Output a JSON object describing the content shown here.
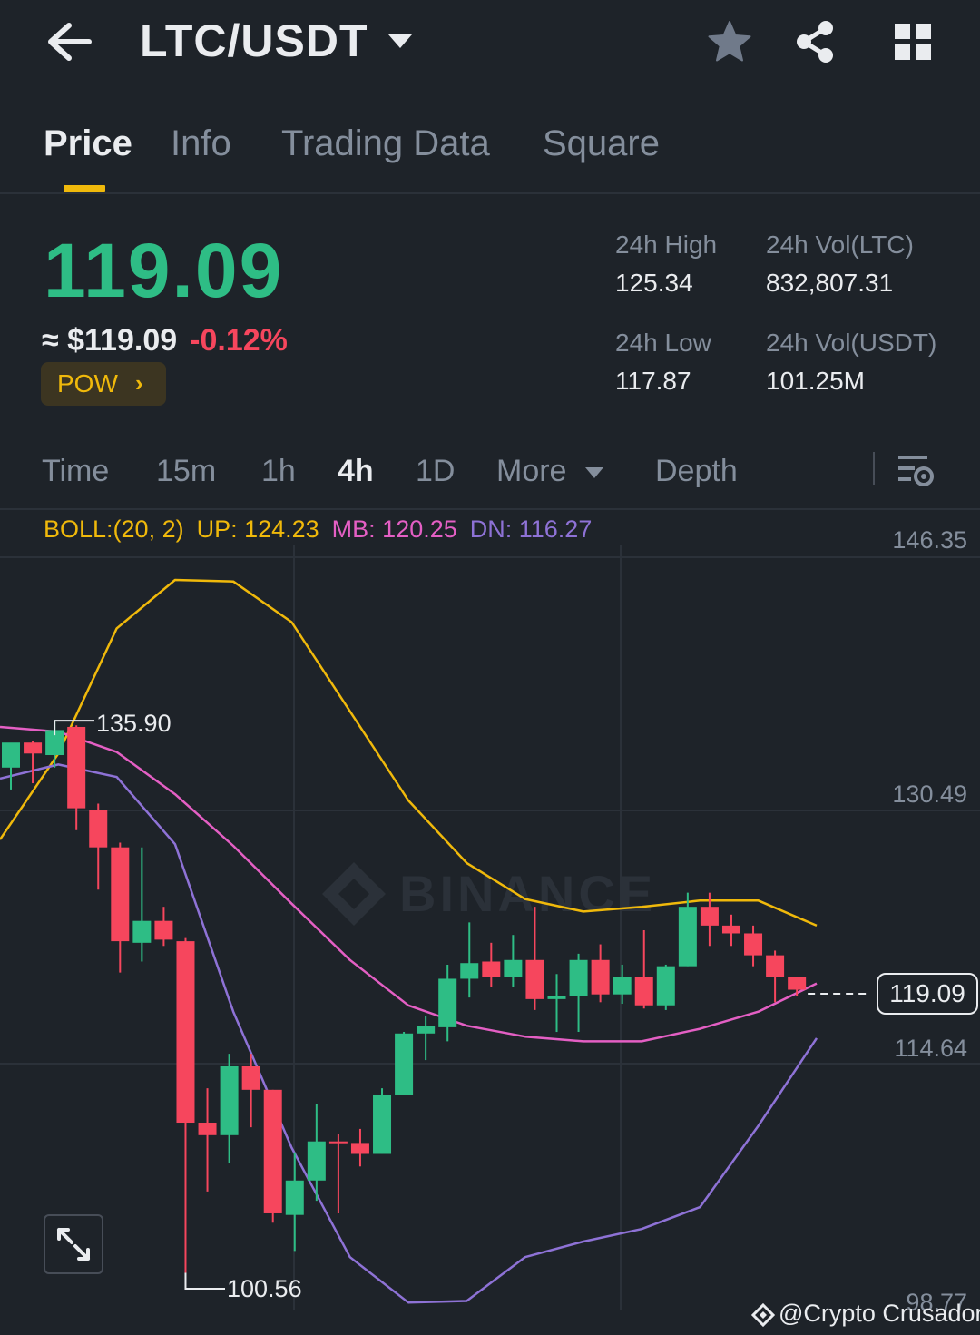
{
  "header": {
    "pair": "LTC/USDT",
    "icons": [
      "back-arrow-icon",
      "caret-down-icon",
      "star-icon",
      "share-icon",
      "grid-icon"
    ]
  },
  "tabs": [
    {
      "label": "Price",
      "active": true
    },
    {
      "label": "Info",
      "active": false
    },
    {
      "label": "Trading Data",
      "active": false
    },
    {
      "label": "Square",
      "active": false
    }
  ],
  "ticker": {
    "last_price": "119.09",
    "fiat_price": "≈ $119.09",
    "change": "-0.12%",
    "tag": "POW",
    "tag_chevron": "›",
    "stats": {
      "high_label": "24h High",
      "high_value": "125.34",
      "vol_ltc_label": "24h Vol(LTC)",
      "vol_ltc_value": "832,807.31",
      "low_label": "24h Low",
      "low_value": "117.87",
      "vol_usdt_label": "24h Vol(USDT)",
      "vol_usdt_value": "101.25M"
    }
  },
  "intervals": {
    "items": [
      "Time",
      "15m",
      "1h",
      "4h",
      "1D"
    ],
    "active": "4h",
    "more": "More",
    "depth": "Depth"
  },
  "indicator": {
    "name": "BOLL:(20, 2)",
    "up": "UP: 124.23",
    "mb": "MB: 120.25",
    "dn": "DN: 116.27"
  },
  "chart_data": {
    "type": "candlestick",
    "interval": "4h",
    "y_axis_labels": [
      "146.35",
      "130.49",
      "114.64",
      "98.77"
    ],
    "current_price_tag": "119.09",
    "high_marker": "135.90",
    "low_marker": "100.56",
    "watermark": "BINANCE",
    "colors": {
      "up": "#2ebd85",
      "down": "#f6465d",
      "boll_up": "#f0b90b",
      "boll_mb": "#e45fc4",
      "boll_dn": "#8e72d6"
    },
    "candles": [
      {
        "o": 132.9,
        "h": 134.4,
        "l": 131.5,
        "c": 134.5
      },
      {
        "o": 134.5,
        "h": 134.6,
        "l": 131.9,
        "c": 133.8
      },
      {
        "o": 133.7,
        "h": 135.9,
        "l": 132.9,
        "c": 135.3
      },
      {
        "o": 135.5,
        "h": 135.6,
        "l": 128.9,
        "c": 130.3
      },
      {
        "o": 130.2,
        "h": 130.6,
        "l": 125.1,
        "c": 127.8
      },
      {
        "o": 127.8,
        "h": 128.1,
        "l": 119.8,
        "c": 121.8
      },
      {
        "o": 121.7,
        "h": 127.8,
        "l": 120.5,
        "c": 123.1
      },
      {
        "o": 123.1,
        "h": 124.0,
        "l": 121.5,
        "c": 121.9
      },
      {
        "o": 121.8,
        "h": 122.0,
        "l": 100.6,
        "c": 110.2
      },
      {
        "o": 110.2,
        "h": 112.4,
        "l": 105.8,
        "c": 109.4
      },
      {
        "o": 109.4,
        "h": 114.6,
        "l": 107.6,
        "c": 113.8
      },
      {
        "o": 113.8,
        "h": 114.6,
        "l": 109.9,
        "c": 112.3
      },
      {
        "o": 112.3,
        "h": 112.3,
        "l": 103.8,
        "c": 104.4
      },
      {
        "o": 104.3,
        "h": 108.3,
        "l": 102.0,
        "c": 106.5
      },
      {
        "o": 106.5,
        "h": 111.4,
        "l": 105.2,
        "c": 109.0
      },
      {
        "o": 109.0,
        "h": 109.5,
        "l": 104.4,
        "c": 108.9
      },
      {
        "o": 108.9,
        "h": 109.8,
        "l": 107.4,
        "c": 108.2
      },
      {
        "o": 108.2,
        "h": 112.4,
        "l": 108.2,
        "c": 112.0
      },
      {
        "o": 112.0,
        "h": 116.0,
        "l": 112.0,
        "c": 115.9
      },
      {
        "o": 115.9,
        "h": 117.0,
        "l": 114.2,
        "c": 116.4
      },
      {
        "o": 116.3,
        "h": 120.3,
        "l": 115.4,
        "c": 119.4
      },
      {
        "o": 119.4,
        "h": 123.0,
        "l": 118.2,
        "c": 120.4
      },
      {
        "o": 120.5,
        "h": 121.7,
        "l": 118.9,
        "c": 119.5
      },
      {
        "o": 119.5,
        "h": 122.2,
        "l": 118.9,
        "c": 120.6
      },
      {
        "o": 120.6,
        "h": 124.0,
        "l": 117.4,
        "c": 118.1
      },
      {
        "o": 118.1,
        "h": 119.7,
        "l": 116.0,
        "c": 118.3
      },
      {
        "o": 118.3,
        "h": 121.0,
        "l": 116.0,
        "c": 120.6
      },
      {
        "o": 120.6,
        "h": 121.6,
        "l": 117.9,
        "c": 118.4
      },
      {
        "o": 118.4,
        "h": 120.3,
        "l": 117.8,
        "c": 119.5
      },
      {
        "o": 119.5,
        "h": 122.5,
        "l": 117.5,
        "c": 117.7
      },
      {
        "o": 117.7,
        "h": 120.3,
        "l": 117.4,
        "c": 120.2
      },
      {
        "o": 120.2,
        "h": 124.9,
        "l": 120.2,
        "c": 124.0
      },
      {
        "o": 124.0,
        "h": 124.9,
        "l": 121.5,
        "c": 122.8
      },
      {
        "o": 122.8,
        "h": 123.5,
        "l": 121.5,
        "c": 122.3
      },
      {
        "o": 122.3,
        "h": 122.8,
        "l": 120.2,
        "c": 120.9
      },
      {
        "o": 120.9,
        "h": 121.2,
        "l": 117.9,
        "c": 119.5
      },
      {
        "o": 119.5,
        "h": 119.5,
        "l": 118.3,
        "c": 118.7
      }
    ],
    "boll_up": [
      128.3,
      133.8,
      141.8,
      144.9,
      144.8,
      142.2,
      136.5,
      130.8,
      126.8,
      124.5,
      123.7,
      124.0,
      124.4,
      124.4,
      122.8
    ],
    "boll_mb": [
      135.5,
      135.2,
      133.9,
      131.2,
      127.9,
      124.2,
      120.6,
      117.7,
      116.4,
      115.7,
      115.4,
      115.4,
      116.2,
      117.3,
      119.1
    ],
    "boll_dn": [
      132.2,
      133.1,
      132.3,
      128.0,
      117.3,
      108.6,
      101.6,
      98.7,
      98.8,
      101.6,
      102.6,
      103.4,
      104.8,
      110.0,
      115.6
    ]
  },
  "footer": {
    "credit": "@Crypto Crusador"
  }
}
